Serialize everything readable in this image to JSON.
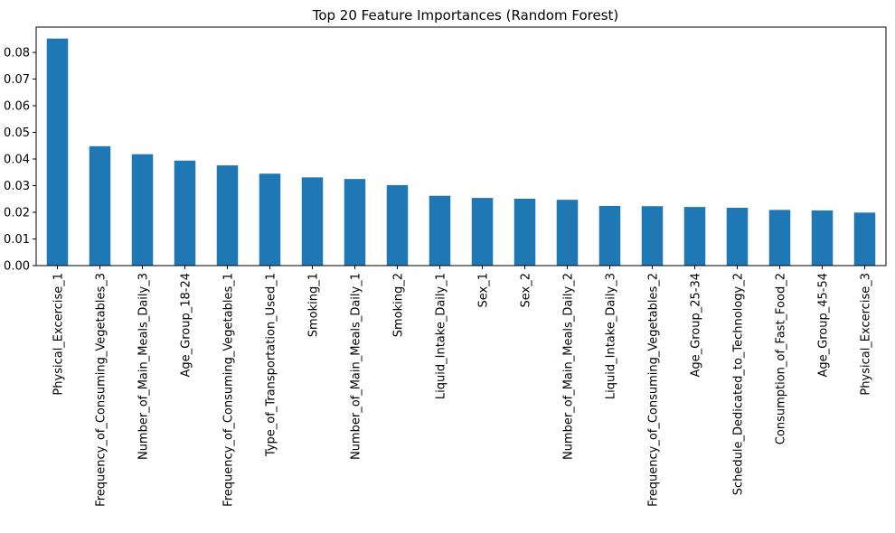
{
  "chart_data": {
    "type": "bar",
    "title": "Top 20 Feature Importances (Random Forest)",
    "xlabel": "",
    "ylabel": "",
    "categories": [
      "Physical_Excercise_1",
      "Frequency_of_Consuming_Vegetables_3",
      "Number_of_Main_Meals_Daily_3",
      "Age_Group_18-24",
      "Frequency_of_Consuming_Vegetables_1",
      "Type_of_Transportation_Used_1",
      "Smoking_1",
      "Number_of_Main_Meals_Daily_1",
      "Smoking_2",
      "Liquid_Intake_Daily_1",
      "Sex_1",
      "Sex_2",
      "Number_of_Main_Meals_Daily_2",
      "Liquid_Intake_Daily_3",
      "Frequency_of_Consuming_Vegetables_2",
      "Age_Group_25-34",
      "Schedule_Dedicated_to_Technology_2",
      "Consumption_of_Fast_Food_2",
      "Age_Group_45-54",
      "Physical_Excercise_3"
    ],
    "values": [
      0.0852,
      0.0448,
      0.0418,
      0.0394,
      0.0376,
      0.0345,
      0.0331,
      0.0325,
      0.0302,
      0.0262,
      0.0254,
      0.0251,
      0.0247,
      0.0224,
      0.0223,
      0.022,
      0.0217,
      0.0209,
      0.0207,
      0.0199
    ],
    "ylim": [
      0,
      0.0895
    ],
    "yticks": [
      0.0,
      0.01,
      0.02,
      0.03,
      0.04,
      0.05,
      0.06,
      0.07,
      0.08
    ],
    "ytick_labels": [
      "0.00",
      "0.01",
      "0.02",
      "0.03",
      "0.04",
      "0.05",
      "0.06",
      "0.07",
      "0.08"
    ],
    "bar_color": "#1f77b4",
    "grid": false,
    "legend": "none"
  }
}
